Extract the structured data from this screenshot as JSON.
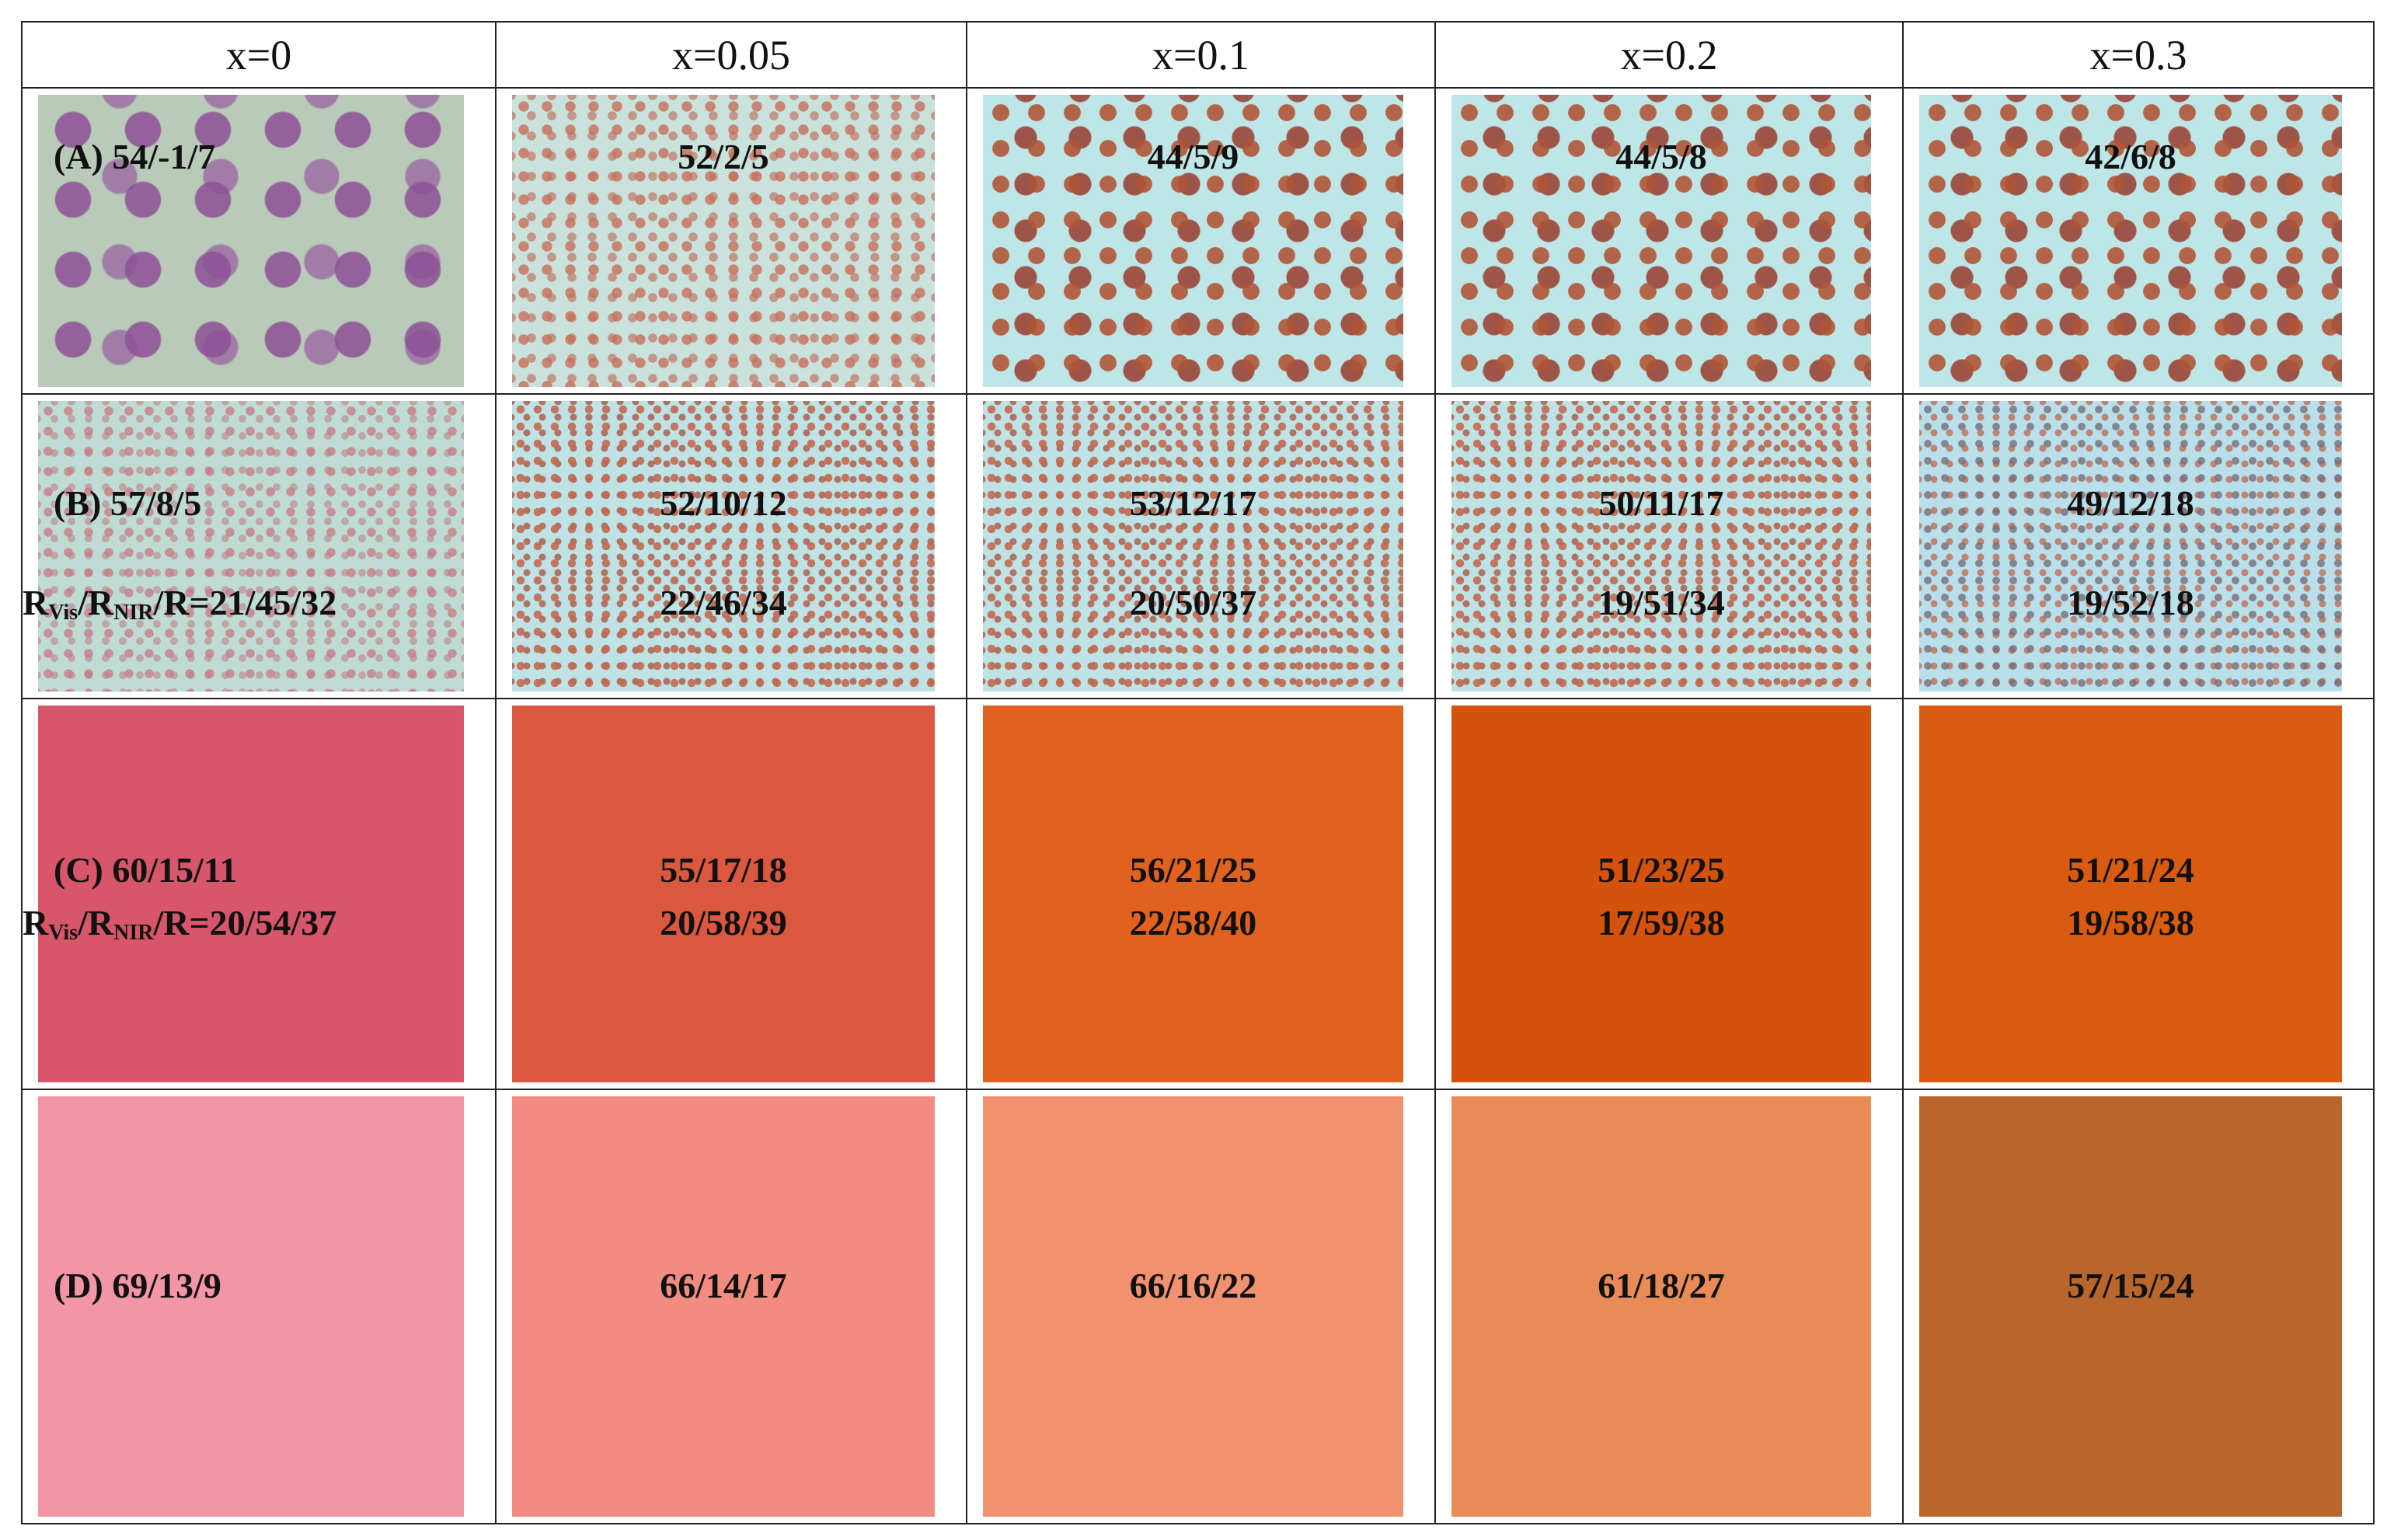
{
  "header": {
    "columns": [
      "x=0",
      "x=0.05",
      "x=0.1",
      "x=0.2",
      "x=0.3"
    ]
  },
  "ratio_prefix": [
    "R",
    "Vis",
    "/R",
    "NIR",
    "/R="
  ],
  "rows": [
    {
      "label": "(A)",
      "cells": [
        {
          "lines": [
            "54/-1/7"
          ]
        },
        {
          "lines": [
            "52/2/5"
          ]
        },
        {
          "lines": [
            "44/5/9"
          ]
        },
        {
          "lines": [
            "44/5/8"
          ]
        },
        {
          "lines": [
            "42/6/8"
          ]
        }
      ]
    },
    {
      "label": "(B)",
      "cells": [
        {
          "lines": [
            "57/8/5",
            "21/45/32"
          ]
        },
        {
          "lines": [
            "52/10/12",
            "22/46/34"
          ]
        },
        {
          "lines": [
            "53/12/17",
            "20/50/37"
          ]
        },
        {
          "lines": [
            "50/11/17",
            "19/51/34"
          ]
        },
        {
          "lines": [
            "49/12/18",
            "19/52/18"
          ]
        }
      ]
    },
    {
      "label": "(C)",
      "cells": [
        {
          "lines": [
            "60/15/11",
            "20/54/37"
          ]
        },
        {
          "lines": [
            "55/17/18",
            "20/58/39"
          ]
        },
        {
          "lines": [
            "56/21/25",
            "22/58/40"
          ]
        },
        {
          "lines": [
            "51/23/25",
            "17/59/38"
          ]
        },
        {
          "lines": [
            "51/21/24",
            "19/58/38"
          ]
        }
      ]
    },
    {
      "label": "(D)",
      "cells": [
        {
          "lines": [
            "69/13/9"
          ]
        },
        {
          "lines": [
            "66/14/17"
          ]
        },
        {
          "lines": [
            "66/16/22"
          ]
        },
        {
          "lines": [
            "61/18/27"
          ]
        },
        {
          "lines": [
            "57/15/24"
          ]
        }
      ]
    }
  ]
}
